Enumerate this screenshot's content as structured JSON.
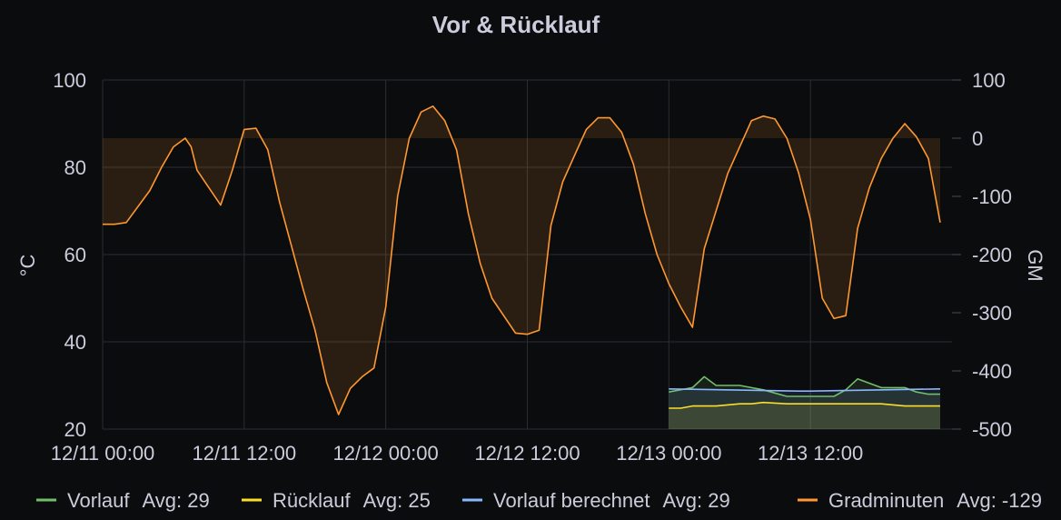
{
  "chart_data": {
    "type": "line",
    "title": "Vor & Rücklauf",
    "ylabel": "°C",
    "y2label": "GM",
    "xlim": [
      "12/11 00:00",
      "12/13 23:00"
    ],
    "ylim": [
      20,
      100
    ],
    "y2lim": [
      -500,
      100
    ],
    "grid": true,
    "legend_position": "bottom",
    "x_ticks": [
      "12/11 00:00",
      "12/11 12:00",
      "12/12 00:00",
      "12/12 12:00",
      "12/13 00:00",
      "12/13 12:00"
    ],
    "y_ticks": [
      20,
      40,
      60,
      80,
      100
    ],
    "y2_ticks": [
      -500,
      -400,
      -300,
      -200,
      -100,
      0,
      100
    ],
    "series": [
      {
        "name": "Vorlauf",
        "axis": "left",
        "color": "#73bf69",
        "legend_value": "Avg: 29",
        "x": [
          "12/13 00:00",
          "12/13 02:00",
          "12/13 03:00",
          "12/13 04:00",
          "12/13 06:00",
          "12/13 08:00",
          "12/13 10:00",
          "12/13 12:00",
          "12/13 14:00",
          "12/13 15:00",
          "12/13 16:00",
          "12/13 18:00",
          "12/13 20:00",
          "12/13 21:00",
          "12/13 22:00",
          "12/13 23:00"
        ],
        "values": [
          28.5,
          29.5,
          32,
          30,
          30,
          29,
          27.5,
          27.5,
          27.5,
          29,
          31.5,
          29.5,
          29.5,
          28.5,
          28,
          28
        ]
      },
      {
        "name": "Rücklauf",
        "axis": "left",
        "color": "#fade2a",
        "legend_value": "Avg: 25",
        "x": [
          "12/13 00:00",
          "12/13 01:00",
          "12/13 02:00",
          "12/13 04:00",
          "12/13 06:00",
          "12/13 07:00",
          "12/13 08:00",
          "12/13 10:00",
          "12/13 12:00",
          "12/13 14:00",
          "12/13 16:00",
          "12/13 18:00",
          "12/13 20:00",
          "12/13 23:00"
        ],
        "values": [
          24.8,
          24.8,
          25.3,
          25.3,
          25.8,
          25.8,
          26.1,
          25.8,
          25.8,
          25.8,
          25.8,
          25.8,
          25.3,
          25.3
        ]
      },
      {
        "name": "Vorlauf berechnet",
        "axis": "left",
        "color": "#8ab8ff",
        "legend_value": "Avg: 29",
        "x": [
          "12/13 00:00",
          "12/13 11:00",
          "12/13 12:00",
          "12/13 23:00"
        ],
        "values": [
          29.2,
          28.7,
          28.7,
          29.2
        ]
      },
      {
        "name": "Gradminuten",
        "axis": "right",
        "color": "#ff9830",
        "legend_value": "Avg: -129",
        "x": [
          "12/11 00:00",
          "12/11 01:00",
          "12/11 02:00",
          "12/11 04:00",
          "12/11 05:00",
          "12/11 06:00",
          "12/11 07:00",
          "12/11 07:30",
          "12/11 08:00",
          "12/11 09:00",
          "12/11 10:00",
          "12/11 11:00",
          "12/11 12:00",
          "12/11 13:00",
          "12/11 14:00",
          "12/11 15:00",
          "12/11 17:00",
          "12/11 18:00",
          "12/11 19:00",
          "12/11 20:00",
          "12/11 21:00",
          "12/11 22:00",
          "12/11 23:00",
          "12/12 00:00",
          "12/12 01:00",
          "12/12 02:00",
          "12/12 03:00",
          "12/12 04:00",
          "12/12 05:00",
          "12/12 06:00",
          "12/12 07:00",
          "12/12 08:00",
          "12/12 09:00",
          "12/12 11:00",
          "12/12 12:00",
          "12/12 13:00",
          "12/12 14:00",
          "12/12 15:00",
          "12/12 16:00",
          "12/12 17:00",
          "12/12 18:00",
          "12/12 19:00",
          "12/12 20:00",
          "12/12 21:00",
          "12/12 22:00",
          "12/12 23:00",
          "12/13 00:00",
          "12/13 01:00",
          "12/13 02:00",
          "12/13 03:00",
          "12/13 05:00",
          "12/13 06:00",
          "12/13 07:00",
          "12/13 08:00",
          "12/13 09:00",
          "12/13 10:00",
          "12/13 11:00",
          "12/13 12:00",
          "12/13 13:00",
          "12/13 14:00",
          "12/13 15:00",
          "12/13 16:00",
          "12/13 17:00",
          "12/13 18:00",
          "12/13 19:00",
          "12/13 20:00",
          "12/13 21:00",
          "12/13 22:00",
          "12/13 23:00"
        ],
        "values": [
          -148,
          -148,
          -145,
          -90,
          -50,
          -15,
          0,
          -15,
          -55,
          -85,
          -115,
          -55,
          15,
          17,
          -20,
          -110,
          -260,
          -330,
          -420,
          -475,
          -430,
          -410,
          -395,
          -290,
          -100,
          0,
          45,
          55,
          30,
          -20,
          -130,
          -215,
          -275,
          -335,
          -337,
          -330,
          -150,
          -75,
          -30,
          15,
          35,
          35,
          10,
          -45,
          -130,
          -200,
          -250,
          -290,
          -325,
          -190,
          -60,
          -15,
          30,
          38,
          33,
          0,
          -60,
          -140,
          -275,
          -310,
          -305,
          -155,
          -85,
          -35,
          0,
          25,
          2,
          -35,
          -145
        ]
      }
    ]
  }
}
